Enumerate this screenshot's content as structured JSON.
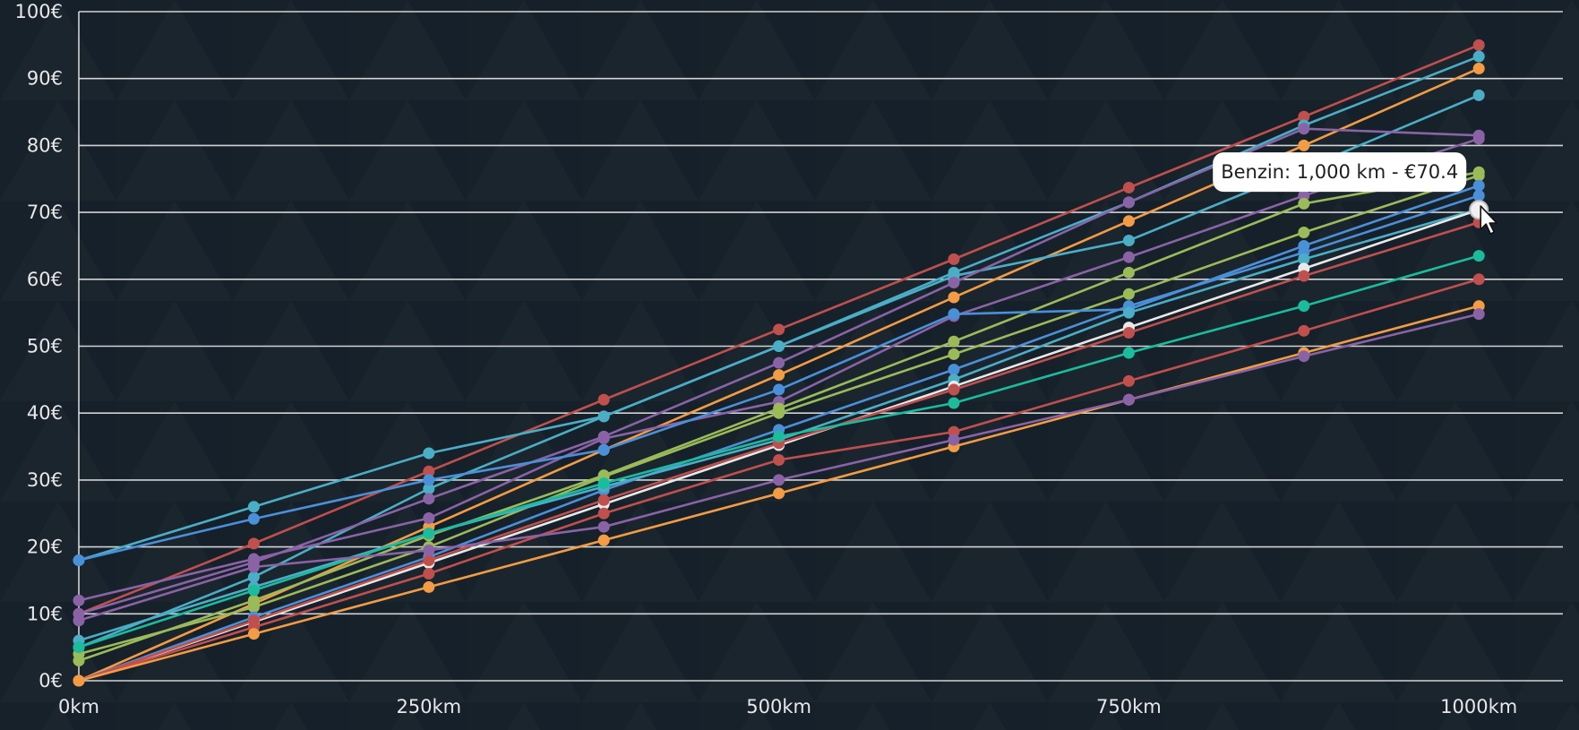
{
  "chart_data": {
    "type": "line",
    "title": "",
    "xlabel": "",
    "ylabel": "",
    "x": [
      0,
      125,
      250,
      375,
      500,
      625,
      750,
      875,
      1000
    ],
    "x_tick_values": [
      0,
      250,
      500,
      750,
      1000
    ],
    "x_tick_labels": [
      "0km",
      "250km",
      "500km",
      "750km",
      "1000km"
    ],
    "y_tick_values": [
      0,
      10,
      20,
      30,
      40,
      50,
      60,
      70,
      80,
      90,
      100
    ],
    "y_tick_labels": [
      "0€",
      "10€",
      "20€",
      "30€",
      "40€",
      "50€",
      "60€",
      "70€",
      "80€",
      "90€",
      "100€"
    ],
    "xlim": [
      0,
      1060
    ],
    "ylim": [
      0,
      100
    ],
    "grid": true,
    "series": [
      {
        "color": "#c0504d",
        "values": [
          10,
          20.5,
          31.3,
          42.0,
          52.5,
          63.0,
          73.7,
          84.3,
          95.0
        ]
      },
      {
        "color": "#4aaec6",
        "values": [
          18,
          26.0,
          34.0,
          39.5,
          50.0,
          61.0,
          71.5,
          83.0,
          93.3
        ]
      },
      {
        "color": "#f39c43",
        "values": [
          0,
          11.5,
          23.0,
          34.5,
          45.7,
          57.3,
          68.7,
          80.0,
          91.5
        ]
      },
      {
        "color": "#4aaec6",
        "values": [
          5,
          15.5,
          28.7,
          39.5,
          50.0,
          60.5,
          65.8,
          76.5,
          87.5
        ]
      },
      {
        "color": "#8a63a6",
        "values": [
          10,
          17.7,
          27.2,
          36.5,
          47.5,
          59.5,
          71.5,
          82.5,
          81.5
        ]
      },
      {
        "color": "#8a63a6",
        "values": [
          12,
          18.2,
          24.3,
          36.2,
          41.7,
          54.5,
          63.3,
          72.5,
          81.0
        ]
      },
      {
        "color": "#9bbb59",
        "values": [
          3,
          12.0,
          21.7,
          30.7,
          40.7,
          50.7,
          61.0,
          71.3,
          76.0
        ]
      },
      {
        "color": "#9bbb59",
        "values": [
          4,
          11.0,
          20.0,
          30.5,
          40.0,
          48.8,
          57.8,
          67.0,
          75.5
        ]
      },
      {
        "color": "#4a90d9",
        "values": [
          18,
          24.2,
          30.0,
          34.5,
          43.5,
          54.8,
          55.5,
          65.0,
          74.0
        ]
      },
      {
        "color": "#4a90d9",
        "values": [
          0,
          9.5,
          18.5,
          28.5,
          37.5,
          46.5,
          56.0,
          64.0,
          72.5
        ]
      },
      {
        "color": "#4aaec6",
        "values": [
          6,
          14.0,
          22.0,
          29.0,
          36.0,
          45.0,
          55.0,
          63.0,
          70.5
        ]
      },
      {
        "color": "#e8e8e8",
        "values": [
          0,
          8.8,
          17.6,
          26.4,
          35.2,
          44.0,
          52.8,
          61.6,
          70.4
        ]
      },
      {
        "color": "#c0504d",
        "values": [
          0,
          9.0,
          18.0,
          27.0,
          35.5,
          43.5,
          52.0,
          60.5,
          68.5
        ]
      },
      {
        "color": "#1abc9c",
        "values": [
          5,
          13.5,
          22.0,
          29.5,
          36.5,
          41.5,
          49.0,
          56.0,
          63.5
        ]
      },
      {
        "color": "#c0504d",
        "values": [
          0,
          8.0,
          16.0,
          25.0,
          33.0,
          37.2,
          44.8,
          52.3,
          60.0
        ]
      },
      {
        "color": "#f39c43",
        "values": [
          0,
          7.0,
          14.0,
          21.0,
          28.0,
          35.0,
          42.0,
          49.0,
          56.0
        ]
      },
      {
        "color": "#8a63a6",
        "values": [
          9,
          17.0,
          19.5,
          23.0,
          30.0,
          36.0,
          42.0,
          48.5,
          54.8
        ]
      }
    ],
    "tooltip": {
      "text": "Benzin: 1,000 km - €70.4",
      "x": 1000,
      "y": 70.4
    }
  }
}
